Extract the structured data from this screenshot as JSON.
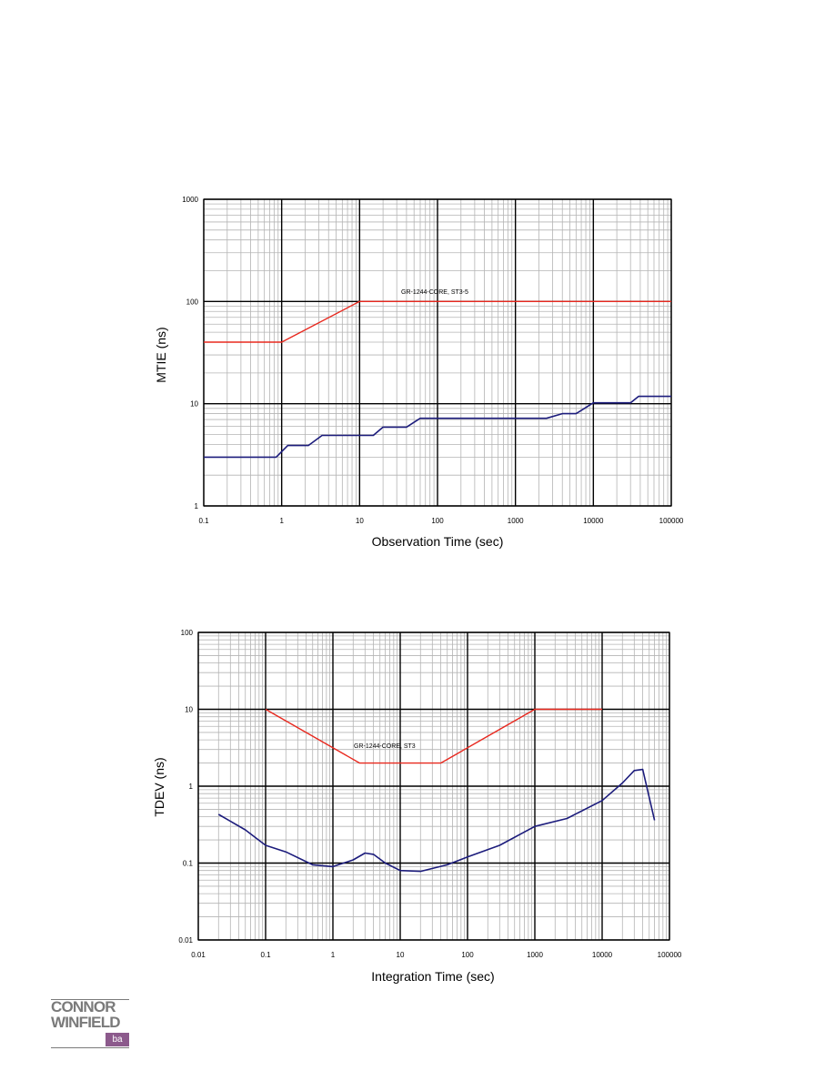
{
  "chart_data": [
    {
      "type": "line",
      "xlabel": "Observation Time (sec)",
      "ylabel": "MTIE (ns)",
      "xscale": "log",
      "yscale": "log",
      "xlim": [
        0.1,
        100000
      ],
      "ylim": [
        1,
        1000
      ],
      "grid": true,
      "x_tick_labels": [
        "0.1",
        "1",
        "10",
        "100",
        "1000",
        "10000",
        "100000"
      ],
      "y_tick_labels": [
        "1",
        "10",
        "100",
        "1000"
      ],
      "annotation": "GR-1244-CORE, ST3-5",
      "series": [
        {
          "role": "mask",
          "color": "#e8281e",
          "points": [
            [
              0.1,
              40
            ],
            [
              1,
              40
            ],
            [
              10,
              100
            ],
            [
              100000,
              100
            ]
          ]
        },
        {
          "role": "measured",
          "color": "#1c1c7c",
          "points": [
            [
              0.1,
              3
            ],
            [
              0.85,
              3
            ],
            [
              1.2,
              3.9
            ],
            [
              2.2,
              3.9
            ],
            [
              3.3,
              4.9
            ],
            [
              15,
              4.9
            ],
            [
              20,
              5.9
            ],
            [
              40,
              5.9
            ],
            [
              60,
              7.2
            ],
            [
              2500,
              7.2
            ],
            [
              4000,
              8
            ],
            [
              6000,
              8
            ],
            [
              10000,
              10.2
            ],
            [
              30000,
              10.2
            ],
            [
              38000,
              11.8
            ],
            [
              100000,
              11.8
            ]
          ]
        }
      ]
    },
    {
      "type": "line",
      "xlabel": "Integration Time (sec)",
      "ylabel": "TDEV (ns)",
      "xscale": "log",
      "yscale": "log",
      "xlim": [
        0.01,
        100000
      ],
      "ylim": [
        0.01,
        100
      ],
      "grid": true,
      "x_tick_labels": [
        "0.01",
        "0.1",
        "1",
        "10",
        "100",
        "1000",
        "10000",
        "100000"
      ],
      "y_tick_labels": [
        "0.01",
        "0.1",
        "1",
        "10",
        "100"
      ],
      "annotation": "GR-1244-CORE, ST3",
      "series": [
        {
          "role": "mask",
          "color": "#e8281e",
          "points": [
            [
              0.1,
              10
            ],
            [
              2.5,
              2
            ],
            [
              40,
              2
            ],
            [
              1000,
              10
            ],
            [
              10000,
              10
            ]
          ]
        },
        {
          "role": "measured",
          "color": "#1c1c7c",
          "points": [
            [
              0.02,
              0.43
            ],
            [
              0.05,
              0.27
            ],
            [
              0.1,
              0.17
            ],
            [
              0.2,
              0.14
            ],
            [
              0.5,
              0.095
            ],
            [
              1,
              0.09
            ],
            [
              2,
              0.11
            ],
            [
              3,
              0.135
            ],
            [
              4,
              0.13
            ],
            [
              6,
              0.1
            ],
            [
              10,
              0.08
            ],
            [
              20,
              0.078
            ],
            [
              50,
              0.095
            ],
            [
              100,
              0.12
            ],
            [
              300,
              0.17
            ],
            [
              1000,
              0.3
            ],
            [
              3000,
              0.38
            ],
            [
              10000,
              0.65
            ],
            [
              20000,
              1.1
            ],
            [
              30000,
              1.6
            ],
            [
              40000,
              1.65
            ],
            [
              60000,
              0.36
            ]
          ]
        }
      ]
    }
  ],
  "logo": {
    "line1": "CONNOR",
    "line2": "WINFIELD",
    "badge": "ba"
  }
}
